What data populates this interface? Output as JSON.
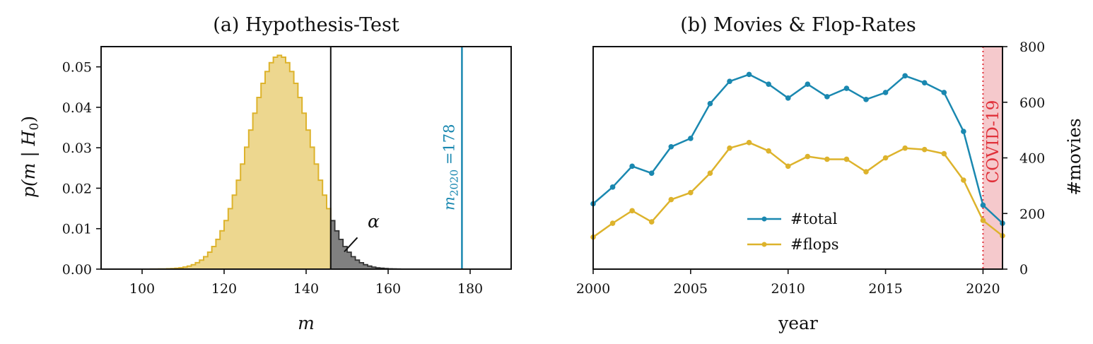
{
  "colors": {
    "yellow": "#DDB32C",
    "yellow_fill": "#EDD78F",
    "blue": "#1A88B0",
    "gray_fill": "#808080",
    "red": "#E0313A",
    "red_fill": "#F5C9CC"
  },
  "chart_data": [
    {
      "type": "histogram",
      "title": "(a) Hypothesis-Test",
      "xlabel": "m",
      "ylabel": "p(m | H",
      "ylabel_sub": "0",
      "ylabel_close": ")",
      "xlim": [
        90,
        190
      ],
      "ylim": [
        0,
        0.055
      ],
      "xticks": [
        "100",
        "120",
        "140",
        "160",
        "180"
      ],
      "yticks": [
        "0.00",
        "0.01",
        "0.02",
        "0.03",
        "0.04",
        "0.05"
      ],
      "mean": 133.5,
      "sd": 7.55,
      "threshold": 146,
      "observed": 178,
      "observed_label": "m",
      "observed_sub": "2020",
      "observed_eq": " =178",
      "alpha_label": "α"
    },
    {
      "type": "line",
      "title": "(b) Movies & Flop-Rates",
      "xlabel": "year",
      "ylabel": "#movies",
      "xlim": [
        2000,
        2021
      ],
      "ylim": [
        0,
        800
      ],
      "xticks": [
        "2000",
        "2005",
        "2010",
        "2015",
        "2020"
      ],
      "yticks": [
        "0",
        "200",
        "400",
        "600",
        "800"
      ],
      "x": [
        2000,
        2001,
        2002,
        2003,
        2004,
        2005,
        2006,
        2007,
        2008,
        2009,
        2010,
        2011,
        2012,
        2013,
        2014,
        2015,
        2016,
        2017,
        2018,
        2019,
        2020,
        2021
      ],
      "series": [
        {
          "name": "#total",
          "values": [
            235,
            295,
            370,
            345,
            440,
            470,
            595,
            675,
            700,
            665,
            615,
            665,
            620,
            650,
            610,
            635,
            695,
            670,
            635,
            495,
            230,
            165
          ]
        },
        {
          "name": "#flops",
          "values": [
            115,
            165,
            210,
            170,
            250,
            275,
            345,
            435,
            455,
            425,
            370,
            405,
            395,
            395,
            350,
            400,
            435,
            430,
            415,
            320,
            175,
            120
          ]
        }
      ],
      "covid_label": "COVID-19",
      "covid_span": [
        2020,
        2021
      ]
    }
  ]
}
